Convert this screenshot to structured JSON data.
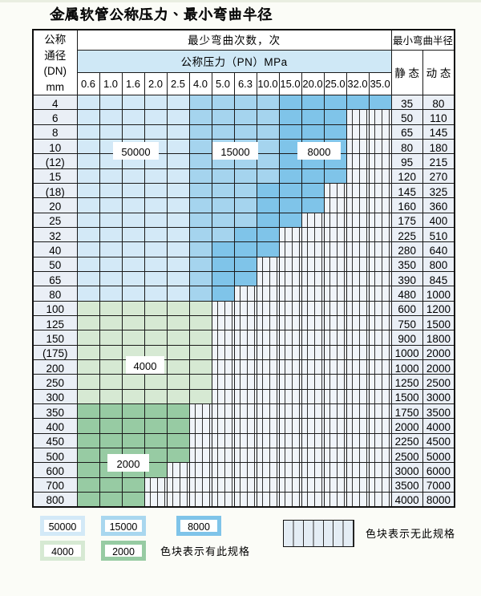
{
  "page": {
    "title": "金属软管公称压力、最小弯曲半径"
  },
  "table": {
    "header": {
      "dn_lines": [
        "公称",
        "通径",
        "(DN)",
        "mm"
      ],
      "bend_cycles_label": "最少弯曲次数，次",
      "pressure_label": "公称压力（PN）MPa",
      "min_radius_label": "最小弯曲半径",
      "static_label": "静 态",
      "dynamic_label": "动 态",
      "pn_columns": [
        "0.6",
        "1.0",
        "1.6",
        "2.0",
        "2.5",
        "4.0",
        "5.0",
        "6.3",
        "10.0",
        "15.0",
        "20.0",
        "25.0",
        "32.0",
        "35.0"
      ]
    },
    "cell_codes": {
      "L": "50000",
      "M": "15000",
      "D": "8000",
      "g": "4000",
      "G": "2000",
      "H": "无此规格"
    },
    "rows": [
      {
        "dn": "4",
        "cells": "LLLLLMMMMDDDDD",
        "static": "35",
        "dynamic": "80"
      },
      {
        "dn": "6",
        "cells": "LLLLLMMMMDDDHH",
        "static": "50",
        "dynamic": "110"
      },
      {
        "dn": "8",
        "cells": "LLLLLMMMMDDDHH",
        "static": "65",
        "dynamic": "145"
      },
      {
        "dn": "10",
        "cells": "LLLLLMMMMDDDHH",
        "static": "80",
        "dynamic": "180"
      },
      {
        "dn": "(12)",
        "cells": "LLLLLMMMMDDDHH",
        "static": "95",
        "dynamic": "215"
      },
      {
        "dn": "15",
        "cells": "LLLLLMMMMDDDHH",
        "static": "120",
        "dynamic": "270"
      },
      {
        "dn": "(18)",
        "cells": "LLLLLMMMDDDHHH",
        "static": "145",
        "dynamic": "325"
      },
      {
        "dn": "20",
        "cells": "LLLLLMMMDDDHHH",
        "static": "160",
        "dynamic": "360"
      },
      {
        "dn": "25",
        "cells": "LLLLLMMMDDHHHH",
        "static": "175",
        "dynamic": "400"
      },
      {
        "dn": "32",
        "cells": "LLLLLMMDDHHHHH",
        "static": "225",
        "dynamic": "510"
      },
      {
        "dn": "40",
        "cells": "LLLLLMDDDHHHHH",
        "static": "280",
        "dynamic": "640"
      },
      {
        "dn": "50",
        "cells": "LLLLLMDDHHHHHH",
        "static": "350",
        "dynamic": "800"
      },
      {
        "dn": "65",
        "cells": "LLLLLMDDHHHHHH",
        "static": "390",
        "dynamic": "845"
      },
      {
        "dn": "80",
        "cells": "LLLLLMDHHHHHHH",
        "static": "480",
        "dynamic": "1000"
      },
      {
        "dn": "100",
        "cells": "ggggggHHHHHHHH",
        "static": "600",
        "dynamic": "1200"
      },
      {
        "dn": "125",
        "cells": "ggggggHHHHHHHH",
        "static": "750",
        "dynamic": "1500"
      },
      {
        "dn": "150",
        "cells": "ggggggHHHHHHHH",
        "static": "900",
        "dynamic": "1800"
      },
      {
        "dn": "(175)",
        "cells": "ggggggHHHHHHHH",
        "static": "1000",
        "dynamic": "2000"
      },
      {
        "dn": "200",
        "cells": "ggggggHHHHHHHH",
        "static": "1000",
        "dynamic": "2000"
      },
      {
        "dn": "250",
        "cells": "ggggggHHHHHHHH",
        "static": "1250",
        "dynamic": "2500"
      },
      {
        "dn": "300",
        "cells": "ggggggHHHHHHHH",
        "static": "1500",
        "dynamic": "3000"
      },
      {
        "dn": "350",
        "cells": "GGGGGHHHHHHHHH",
        "static": "1750",
        "dynamic": "3500"
      },
      {
        "dn": "400",
        "cells": "GGGGGHHHHHHHHH",
        "static": "2000",
        "dynamic": "4000"
      },
      {
        "dn": "450",
        "cells": "GGGGGHHHHHHHHH",
        "static": "2250",
        "dynamic": "4500"
      },
      {
        "dn": "500",
        "cells": "GGGGGHHHHHHHHH",
        "static": "2500",
        "dynamic": "5000"
      },
      {
        "dn": "600",
        "cells": "GGGGHHHHHHHHHH",
        "static": "3000",
        "dynamic": "6000"
      },
      {
        "dn": "700",
        "cells": "GGGHHHHHHHHHHH",
        "static": "3500",
        "dynamic": "7000"
      },
      {
        "dn": "800",
        "cells": "GGGHHHHHHHHHHH",
        "static": "4000",
        "dynamic": "8000"
      }
    ]
  },
  "overlays": [
    {
      "label": "50000"
    },
    {
      "label": "15000"
    },
    {
      "label": "8000"
    },
    {
      "label": "4000"
    },
    {
      "label": "2000"
    }
  ],
  "legend": {
    "items": [
      {
        "label": "50000",
        "code": "L"
      },
      {
        "label": "15000",
        "code": "M"
      },
      {
        "label": "8000",
        "code": "D"
      },
      {
        "label": "4000",
        "code": "g"
      },
      {
        "label": "2000",
        "code": "G"
      }
    ],
    "available_note": "色块表示有此规格",
    "unavailable_note": "色块表示无此规格"
  },
  "colors": {
    "L": "#d3e9f7",
    "M": "#a5d4ee",
    "D": "#7fc4e9",
    "g": "#d6e9d3",
    "G": "#97cba3",
    "hatch_fill": "#f0f4f9",
    "hatch_line": "#333333",
    "grid": "#222222",
    "outer_border": "#0f0f0f",
    "pressure_header_bg": "#cfe8f6",
    "row_header_bg": "#eaeff6",
    "page_bg": "#fbfcf7"
  }
}
